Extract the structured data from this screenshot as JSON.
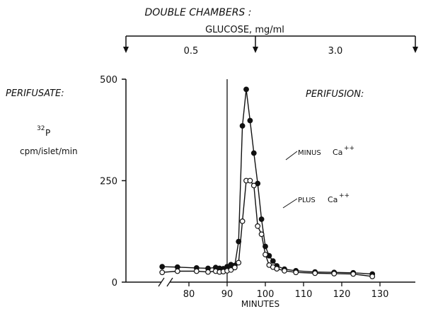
{
  "header": {
    "top_label": "DOUBLE CHAMBERS :",
    "glucose_label": "GLUCOSE, mg/ml",
    "segment_1": "0.5",
    "segment_2": "3.0"
  },
  "left_labels": {
    "perifusate": "PERIFUSATE:",
    "isotope_mass": "32",
    "isotope_symbol": "P",
    "units": "cpm/islet/min"
  },
  "annotations": {
    "perifusion": "PERIFUSION:",
    "minus_ca": "MINUS",
    "plus_ca": "PLUS",
    "ca_symbol": "Ca",
    "ca_charge": "++"
  },
  "chart_data": {
    "type": "line",
    "xlabel": "MINUTES",
    "ylabel": "cpm/islet/min",
    "xlim": [
      70,
      130
    ],
    "ylim": [
      0,
      500
    ],
    "x_ticks": [
      80,
      90,
      100,
      110,
      120,
      130
    ],
    "y_ticks": [
      0,
      250,
      500
    ],
    "vertical_marker_x": 90,
    "axis_break": true,
    "grid": false,
    "series": [
      {
        "name": "MINUS Ca++",
        "marker": "filled",
        "x": [
          73,
          77,
          82,
          85,
          87,
          88,
          89,
          90,
          91,
          92,
          93,
          94,
          95,
          96,
          97,
          98,
          99,
          100,
          101,
          102,
          103,
          105,
          108,
          113,
          118,
          123,
          128
        ],
        "y": [
          38,
          37,
          35,
          34,
          36,
          34,
          33,
          38,
          43,
          41,
          100,
          385,
          475,
          398,
          318,
          243,
          155,
          88,
          65,
          52,
          40,
          32,
          28,
          25,
          24,
          23,
          20
        ]
      },
      {
        "name": "PLUS Ca++",
        "marker": "open",
        "x": [
          73,
          77,
          82,
          85,
          87,
          88,
          89,
          90,
          91,
          92,
          93,
          94,
          95,
          96,
          97,
          98,
          99,
          100,
          101,
          102,
          103,
          105,
          108,
          113,
          118,
          123,
          128
        ],
        "y": [
          24,
          27,
          27,
          25,
          27,
          25,
          26,
          28,
          30,
          36,
          48,
          150,
          250,
          250,
          238,
          138,
          118,
          68,
          42,
          37,
          33,
          28,
          24,
          22,
          21,
          20,
          14
        ]
      }
    ]
  }
}
